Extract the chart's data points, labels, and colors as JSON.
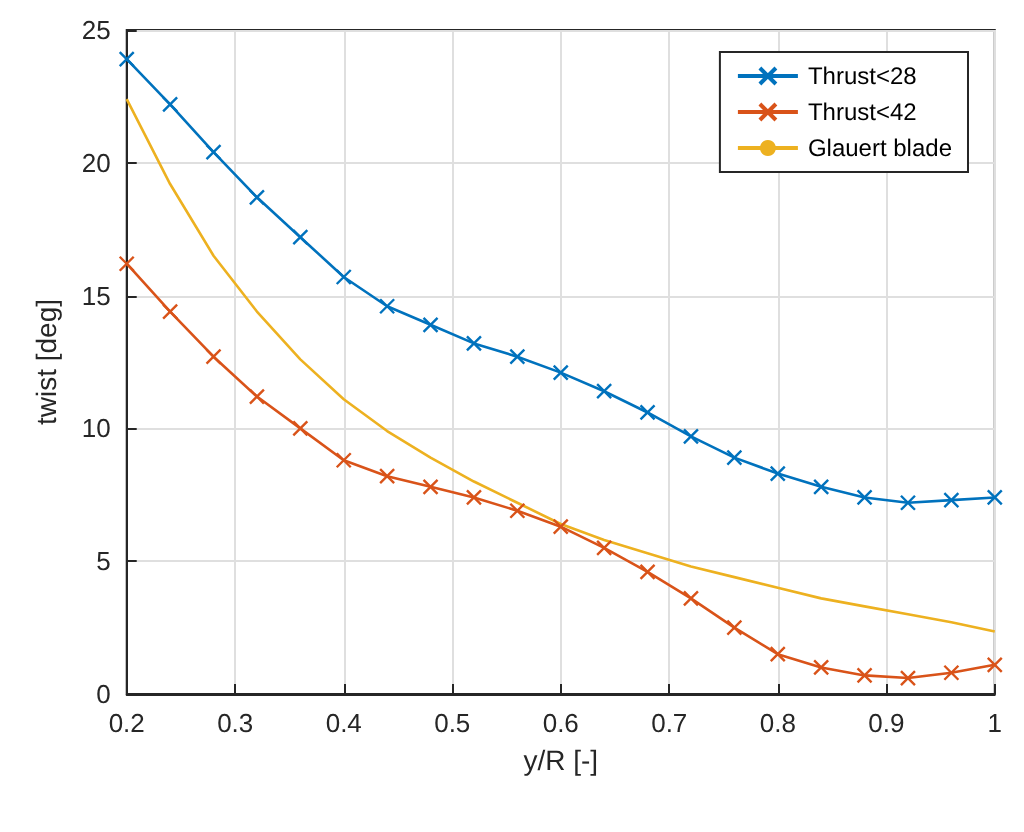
{
  "chart_data": {
    "type": "line",
    "xlabel": "y/R [-]",
    "ylabel": "twist [deg]",
    "xlim": [
      0.2,
      1
    ],
    "xticks": [
      0.2,
      0.3,
      0.4,
      0.5,
      0.6,
      0.7,
      0.8,
      0.9,
      1
    ],
    "ylim": [
      0,
      25
    ],
    "yticks": [
      0,
      5,
      10,
      15,
      20,
      25
    ],
    "grid": true,
    "legend": "top right",
    "x": [
      0.2,
      0.24,
      0.28,
      0.32,
      0.36,
      0.4,
      0.44,
      0.48,
      0.52,
      0.56,
      0.6,
      0.64,
      0.68,
      0.72,
      0.76,
      0.8,
      0.84,
      0.88,
      0.92,
      0.96,
      1.0
    ],
    "series": [
      {
        "name": "Thrust<28",
        "color": "#0072bd",
        "marker": "cross",
        "values": [
          23.9,
          22.2,
          20.4,
          18.7,
          17.2,
          15.7,
          14.6,
          13.9,
          13.2,
          12.7,
          12.1,
          11.4,
          10.6,
          9.7,
          8.9,
          8.3,
          7.8,
          7.4,
          7.2,
          7.3,
          7.4
        ]
      },
      {
        "name": "Thrust<42",
        "color": "#d95319",
        "marker": "cross",
        "values": [
          16.2,
          14.4,
          12.7,
          11.2,
          10.0,
          8.8,
          8.2,
          7.8,
          7.4,
          6.9,
          6.3,
          5.5,
          4.6,
          3.6,
          2.5,
          1.5,
          1.0,
          0.7,
          0.6,
          0.8,
          1.1
        ]
      },
      {
        "name": "Glauert blade",
        "color": "#edb120",
        "marker": "none",
        "values": [
          22.4,
          19.2,
          16.5,
          14.4,
          12.6,
          11.1,
          9.9,
          8.9,
          8.0,
          7.2,
          6.4,
          5.8,
          5.3,
          4.8,
          4.4,
          4.0,
          3.6,
          3.3,
          3.0,
          2.7,
          2.35
        ]
      }
    ]
  }
}
